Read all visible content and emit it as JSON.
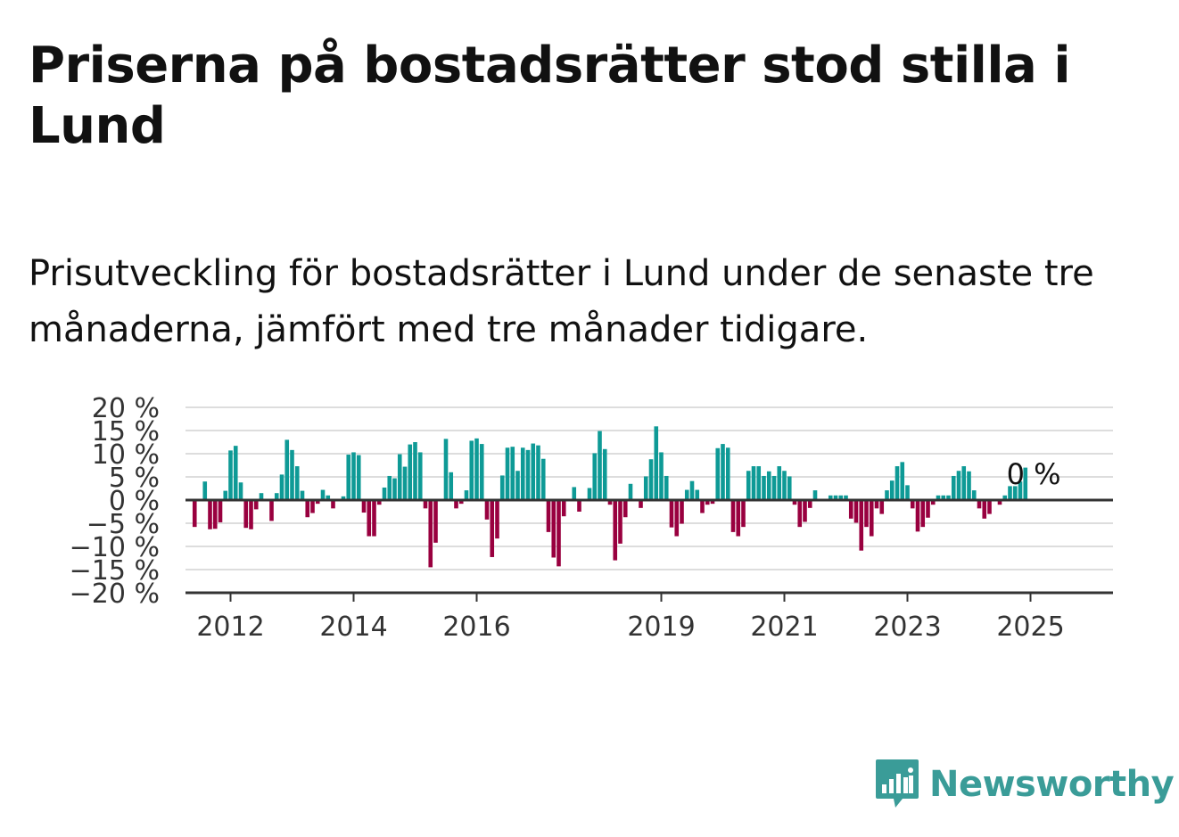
{
  "header": {
    "title": "Priserna på bostadsrätter stod stilla i Lund",
    "subtitle": "Prisutveckling för bostadsrätter i Lund under de senaste tre månaderna, jämfört med tre månader tidigare."
  },
  "branding": {
    "logo_icon": "newsworthy-chart-bubble-icon",
    "name": "Newsworthy"
  },
  "colors": {
    "positive": "#0e9a96",
    "negative": "#99003f",
    "grid": "#dddddd",
    "axis": "#333333",
    "logo": "#3a9c98"
  },
  "chart_data": {
    "type": "bar",
    "x_start": "2011-06",
    "x_step": "month",
    "x_tick_labels": [
      "2012",
      "2014",
      "2016",
      "2019",
      "2021",
      "2023",
      "2025"
    ],
    "y_tick_labels": [
      "20 %",
      "15 %",
      "10 %",
      "5 %",
      "0 %",
      "−5 %",
      "−10 %",
      "−15 %",
      "−20 %"
    ],
    "ylim": [
      -20,
      20
    ],
    "y_ticks": [
      20,
      15,
      10,
      5,
      0,
      -5,
      -10,
      -15,
      -20
    ],
    "grid": true,
    "last_value_label": "0 %",
    "values": [
      -5.8,
      0,
      4,
      -6.3,
      -6.2,
      -4.8,
      2,
      10.7,
      11.7,
      3.8,
      -6,
      -6.3,
      -2,
      1.5,
      0,
      -4.5,
      1.5,
      5.5,
      13,
      10.8,
      7.3,
      2,
      -3.7,
      -2.8,
      -0.8,
      2.2,
      1,
      -1.8,
      0,
      0.8,
      9.8,
      10.3,
      9.7,
      -2.7,
      -7.8,
      -7.8,
      -1,
      2.7,
      5.2,
      4.7,
      9.9,
      7.2,
      12,
      12.5,
      10.3,
      -1.8,
      -14.5,
      -9.2,
      0,
      13.2,
      6,
      -1.8,
      -0.8,
      2.1,
      12.8,
      13.3,
      12.1,
      -4.2,
      -12.3,
      -8.3,
      5.3,
      11.3,
      11.5,
      6.3,
      11.3,
      10.8,
      12.2,
      11.8,
      8.9,
      -6.9,
      -12.4,
      -14.3,
      -3.5,
      0,
      2.8,
      -2.5,
      0,
      2.6,
      10.1,
      14.9,
      11,
      -1,
      -13,
      -9.4,
      -3.7,
      3.5,
      0,
      -1.7,
      5.1,
      8.8,
      15.9,
      10.3,
      5.2,
      -5.9,
      -7.8,
      -5.1,
      2.2,
      4.1,
      2.2,
      -2.8,
      -1,
      -0.8,
      11.2,
      12.1,
      11.3,
      -6.9,
      -7.8,
      -5.8,
      6.3,
      7.3,
      7.3,
      5.2,
      6.2,
      5.2,
      7.3,
      6.3,
      5.1,
      -1,
      -5.8,
      -4.7,
      -1.7,
      2.1,
      0,
      0,
      1,
      1,
      1,
      1,
      -4,
      -4.9,
      -10.9,
      -5.8,
      -7.8,
      -1.8,
      -3,
      2.1,
      4.2,
      7.3,
      8.2,
      3.2,
      -1.8,
      -6.8,
      -5.8,
      -3.8,
      -1,
      1,
      1,
      1,
      5.2,
      6.3,
      7.3,
      6.2,
      2.1,
      -1.8,
      -4,
      -3,
      0,
      -1,
      1,
      3,
      3,
      4,
      7,
      0
    ]
  }
}
